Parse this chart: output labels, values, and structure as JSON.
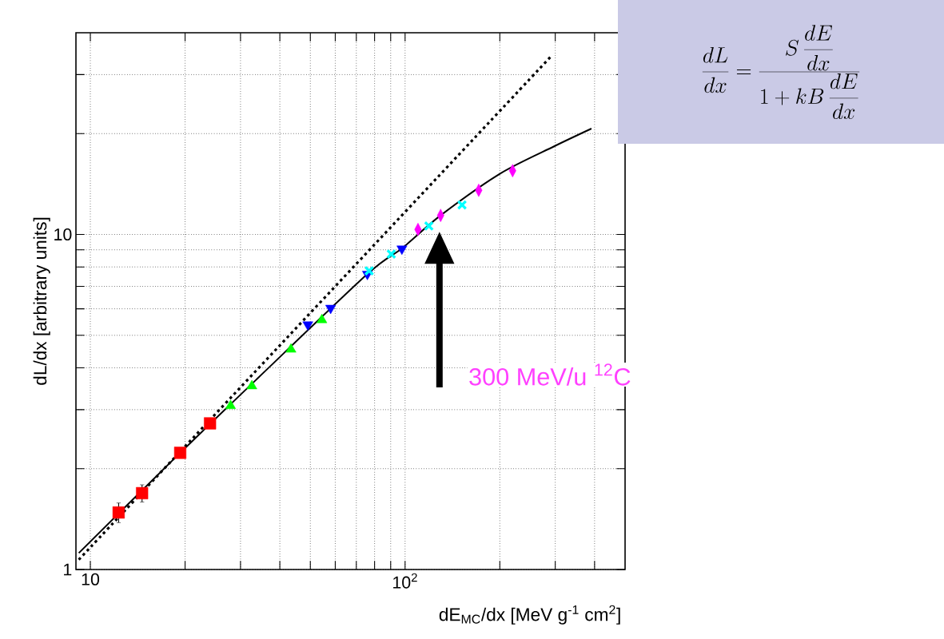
{
  "chart_data": {
    "type": "scatter",
    "xlabel": "dE$_{MC}$/dx [MeV g$^{-1}$ cm$^{2}$]",
    "ylabel": "dL/dx [arbitrary units]",
    "log": "xy",
    "grid": true,
    "xlim": [
      9,
      500
    ],
    "ylim": [
      1,
      40
    ],
    "xticks": [
      10,
      {
        "value": 20,
        "label": null
      },
      {
        "value": 30,
        "label": null
      },
      {
        "value": 40,
        "label": null
      },
      {
        "value": 50,
        "label": null
      },
      {
        "value": 60,
        "label": null
      },
      {
        "value": 70,
        "label": null
      },
      {
        "value": 80,
        "label": null
      },
      {
        "value": 90,
        "label": null
      },
      {
        "value": 100,
        "label": "10$^{2}$"
      },
      {
        "value": 200,
        "label": null
      },
      {
        "value": 300,
        "label": null
      },
      {
        "value": 400,
        "label": null
      }
    ],
    "yticks": [
      1,
      {
        "value": 2,
        "label": null
      },
      {
        "value": 3,
        "label": null
      },
      {
        "value": 4,
        "label": null
      },
      {
        "value": 5,
        "label": null
      },
      {
        "value": 6,
        "label": null
      },
      {
        "value": 7,
        "label": null
      },
      {
        "value": 8,
        "label": null
      },
      {
        "value": 9,
        "label": null
      },
      10,
      {
        "value": 20,
        "label": null
      },
      {
        "value": 30,
        "label": null
      }
    ],
    "series": [
      {
        "marker": "square",
        "color": "#ff0000",
        "x": [
          12.3,
          14.6,
          19.3,
          24.0
        ],
        "values": [
          1.48,
          1.69,
          2.23,
          2.73
        ],
        "errors": [
          0.1,
          0.1,
          null,
          null
        ]
      },
      {
        "marker": "triangle",
        "color": "#00ff00",
        "x": [
          27.9,
          32.6,
          43.4,
          54.4
        ],
        "values": [
          3.08,
          3.53,
          4.54,
          5.56
        ]
      },
      {
        "marker": "triangle_down",
        "color": "#0000ff",
        "x": [
          49.1,
          58.0,
          75.9,
          97.7
        ],
        "values": [
          5.38,
          6.03,
          7.62,
          9.06
        ]
      },
      {
        "marker": "cross",
        "color": "#00ffff",
        "x": [
          76.9,
          90.4,
          119,
          151.7
        ],
        "values": [
          7.79,
          8.74,
          10.6,
          12.25
        ]
      },
      {
        "marker": "diamond",
        "color": "#ff00ff",
        "x": [
          109.9,
          129.7,
          171.4,
          219.6
        ],
        "values": [
          10.35,
          11.4,
          13.55,
          15.5
        ]
      },
      {
        "type": "line",
        "marker": "none",
        "line_style": "solid",
        "color": "#000000",
        "x": [
          9.19,
          19.3,
          34.3,
          75.9,
          97.9,
          129.7,
          200.5,
          296.5,
          391
        ],
        "values": [
          1.12,
          2.23,
          3.75,
          7.62,
          9.1,
          11.4,
          15.2,
          18.3,
          20.7
        ]
      },
      {
        "type": "line",
        "marker": "none",
        "line_style": "dotted",
        "color": "#000000",
        "x": [
          9.19,
          290
        ],
        "values": [
          1.07,
          33.9
        ]
      }
    ],
    "annotations": [
      "300 MeV/u $^{12}$C",
      "\\frac{dL}{dx}=\\frac{S\\,\\displaystyle\\frac{dE}{dx}}{1+kB\\,\\displaystyle\\frac{dE}{dx}}"
    ]
  }
}
